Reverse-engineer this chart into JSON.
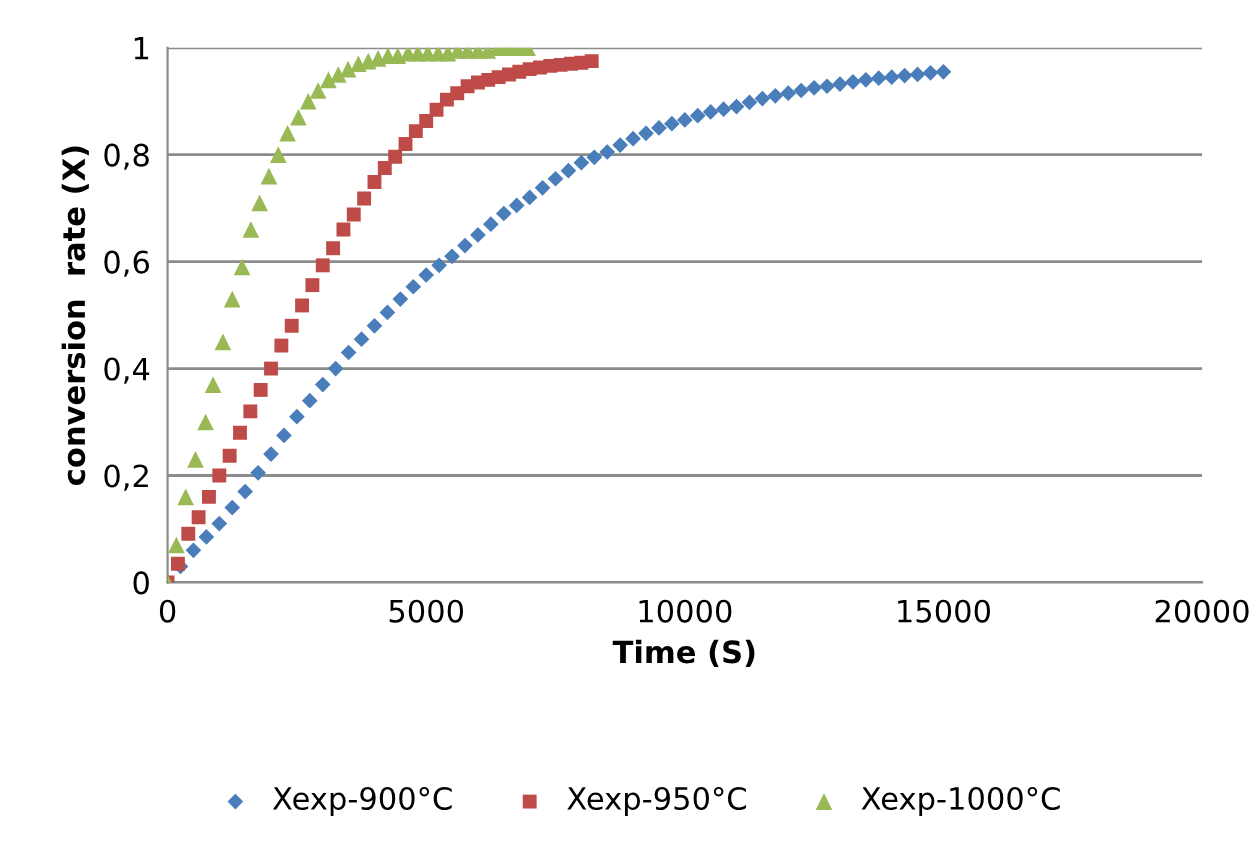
{
  "chart_data": {
    "type": "scatter",
    "xlabel": "Time (S)",
    "ylabel": "conversion  rate (X)",
    "xlim": [
      0,
      20000
    ],
    "xticks": [
      0,
      5000,
      10000,
      15000,
      20000
    ],
    "ylim": [
      0,
      1
    ],
    "yticks": [
      0,
      {
        "value": 0.2,
        "label": "0,2"
      },
      {
        "value": 0.4,
        "label": "0,4"
      },
      {
        "value": 0.6,
        "label": "0,6"
      },
      {
        "value": 0.8,
        "label": "0,8"
      },
      1
    ],
    "grid": "y",
    "legend": "bottom",
    "series": [
      {
        "name": "Xexp-900°C",
        "color": "#4a7ebb",
        "marker": "diamond",
        "x": [
          0,
          250,
          500,
          750,
          1000,
          1250,
          1500,
          1750,
          2000,
          2250,
          2500,
          2750,
          3000,
          3250,
          3500,
          3750,
          4000,
          4250,
          4500,
          4750,
          5000,
          5250,
          5500,
          5750,
          6000,
          6250,
          6500,
          6750,
          7000,
          7250,
          7500,
          7750,
          8000,
          8250,
          8500,
          8750,
          9000,
          9250,
          9500,
          9750,
          10000,
          10250,
          10500,
          10750,
          11000,
          11250,
          11500,
          11750,
          12000,
          12250,
          12500,
          12750,
          13000,
          13250,
          13500,
          13750,
          14000,
          14250,
          14500,
          14750,
          15000
        ],
        "values": [
          0,
          0.03,
          0.06,
          0.085,
          0.11,
          0.14,
          0.17,
          0.205,
          0.24,
          0.275,
          0.31,
          0.34,
          0.37,
          0.4,
          0.43,
          0.455,
          0.48,
          0.505,
          0.53,
          0.553,
          0.575,
          0.593,
          0.61,
          0.63,
          0.65,
          0.67,
          0.69,
          0.705,
          0.72,
          0.738,
          0.755,
          0.77,
          0.785,
          0.795,
          0.805,
          0.818,
          0.83,
          0.84,
          0.85,
          0.858,
          0.865,
          0.873,
          0.88,
          0.885,
          0.89,
          0.898,
          0.905,
          0.91,
          0.915,
          0.92,
          0.925,
          0.928,
          0.932,
          0.936,
          0.94,
          0.943,
          0.945,
          0.948,
          0.95,
          0.953,
          0.955
        ]
      },
      {
        "name": "Xexp-950°C",
        "color": "#be4b48",
        "marker": "square",
        "x": [
          0,
          200,
          400,
          600,
          800,
          1000,
          1200,
          1400,
          1600,
          1800,
          2000,
          2200,
          2400,
          2600,
          2800,
          3000,
          3200,
          3400,
          3600,
          3800,
          4000,
          4200,
          4400,
          4600,
          4800,
          5000,
          5200,
          5400,
          5600,
          5800,
          6000,
          6200,
          6400,
          6600,
          6800,
          7000,
          7200,
          7400,
          7600,
          7800,
          8000,
          8200
        ],
        "values": [
          0,
          0.035,
          0.091,
          0.122,
          0.16,
          0.2,
          0.237,
          0.28,
          0.32,
          0.36,
          0.4,
          0.443,
          0.48,
          0.518,
          0.556,
          0.593,
          0.625,
          0.66,
          0.688,
          0.718,
          0.749,
          0.775,
          0.796,
          0.82,
          0.844,
          0.863,
          0.884,
          0.903,
          0.915,
          0.928,
          0.935,
          0.94,
          0.945,
          0.95,
          0.955,
          0.96,
          0.963,
          0.966,
          0.968,
          0.97,
          0.972,
          0.975
        ]
      },
      {
        "name": "Xexp-1000°C",
        "color": "#98b954",
        "marker": "triangle",
        "x": [
          0,
          170,
          350,
          540,
          735,
          880,
          1070,
          1250,
          1440,
          1610,
          1780,
          1960,
          2140,
          2320,
          2530,
          2720,
          2910,
          3110,
          3300,
          3490,
          3690,
          3880,
          4070,
          4260,
          4450,
          4650,
          4840,
          5030,
          5230,
          5420,
          5610,
          5800,
          6000,
          6190,
          6380,
          6570,
          6770,
          6960
        ],
        "values": [
          0,
          0.07,
          0.16,
          0.23,
          0.3,
          0.37,
          0.45,
          0.53,
          0.59,
          0.66,
          0.71,
          0.76,
          0.8,
          0.84,
          0.87,
          0.9,
          0.92,
          0.94,
          0.95,
          0.96,
          0.97,
          0.975,
          0.98,
          0.985,
          0.985,
          0.99,
          0.99,
          0.99,
          0.99,
          0.99,
          0.995,
          0.995,
          0.995,
          0.995,
          1,
          1,
          1,
          1
        ]
      }
    ]
  }
}
